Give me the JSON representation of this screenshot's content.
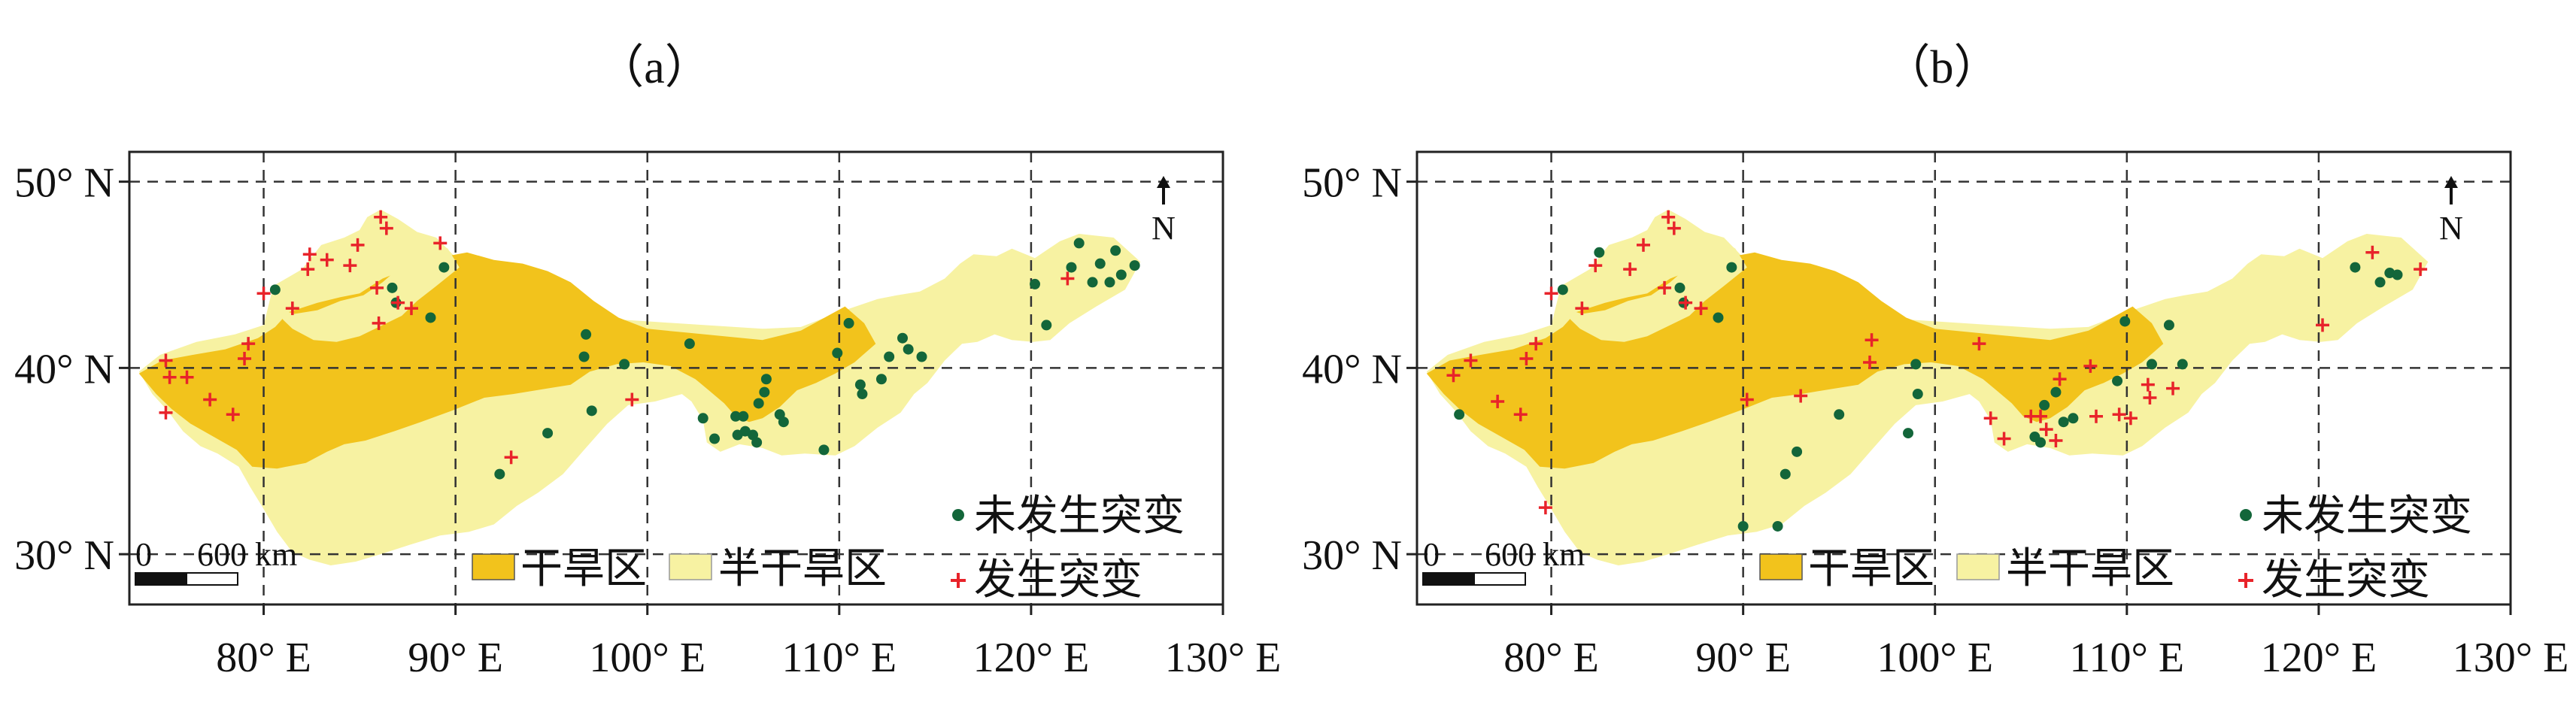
{
  "colors": {
    "arid": "#f2c31c",
    "semi_arid": "#f7f2a2",
    "no_mutation_marker": "#13663a",
    "mutation_marker": "#e8232a",
    "frame": "#222222",
    "grid": "#333333"
  },
  "panels": [
    {
      "label": "（a）",
      "legend": {
        "no_mutation": "未发生突变",
        "mutation": "发生突变",
        "arid": "干旱区",
        "semi_arid": "半干旱区"
      },
      "scale": {
        "zero": "0",
        "distance": "600 km"
      },
      "north": "N",
      "x_ticks": [
        "80° E",
        "90° E",
        "100° E",
        "110° E",
        "120° E",
        "130° E"
      ],
      "y_ticks": [
        "50° N",
        "40° N",
        "30° N"
      ],
      "green_points": [
        [
          80.6,
          44.2
        ],
        [
          86.7,
          44.3
        ],
        [
          86.9,
          43.5
        ],
        [
          88.7,
          42.7
        ],
        [
          89.4,
          45.4
        ],
        [
          96.8,
          41.8
        ],
        [
          96.7,
          40.6
        ],
        [
          98.8,
          40.2
        ],
        [
          102.2,
          41.3
        ],
        [
          97.1,
          37.7
        ],
        [
          102.9,
          37.3
        ],
        [
          103.5,
          36.2
        ],
        [
          104.6,
          37.4
        ],
        [
          105.0,
          37.4
        ],
        [
          105.1,
          36.6
        ],
        [
          104.7,
          36.4
        ],
        [
          105.5,
          36.4
        ],
        [
          105.8,
          38.1
        ],
        [
          106.1,
          38.7
        ],
        [
          106.2,
          39.4
        ],
        [
          105.7,
          36.0
        ],
        [
          106.9,
          37.5
        ],
        [
          107.1,
          37.1
        ],
        [
          109.2,
          35.6
        ],
        [
          109.9,
          40.8
        ],
        [
          110.5,
          42.4
        ],
        [
          111.1,
          39.1
        ],
        [
          111.2,
          38.6
        ],
        [
          112.2,
          39.4
        ],
        [
          112.6,
          40.6
        ],
        [
          113.3,
          41.6
        ],
        [
          113.6,
          41.0
        ],
        [
          114.3,
          40.6
        ],
        [
          120.2,
          44.5
        ],
        [
          120.8,
          42.3
        ],
        [
          122.5,
          46.7
        ],
        [
          123.2,
          44.6
        ],
        [
          123.6,
          45.6
        ],
        [
          124.1,
          44.6
        ],
        [
          124.4,
          46.3
        ],
        [
          124.7,
          45.0
        ],
        [
          125.4,
          45.5
        ],
        [
          122.1,
          45.4
        ],
        [
          92.3,
          34.3
        ],
        [
          94.8,
          36.5
        ]
      ],
      "red_points": [
        [
          74.9,
          40.4
        ],
        [
          75.1,
          39.5
        ],
        [
          74.9,
          37.6
        ],
        [
          76.0,
          39.5
        ],
        [
          77.2,
          38.3
        ],
        [
          78.4,
          37.5
        ],
        [
          79.0,
          40.5
        ],
        [
          79.2,
          41.3
        ],
        [
          80.0,
          44.0
        ],
        [
          81.5,
          43.2
        ],
        [
          82.3,
          45.3
        ],
        [
          82.4,
          46.1
        ],
        [
          83.3,
          45.8
        ],
        [
          84.5,
          45.5
        ],
        [
          84.9,
          46.6
        ],
        [
          85.9,
          44.3
        ],
        [
          86.1,
          48.1
        ],
        [
          86.4,
          47.5
        ],
        [
          86.0,
          42.4
        ],
        [
          87.0,
          43.5
        ],
        [
          87.7,
          43.2
        ],
        [
          89.2,
          46.7
        ],
        [
          92.9,
          35.2
        ],
        [
          99.2,
          38.3
        ],
        [
          121.9,
          44.8
        ]
      ]
    },
    {
      "label": "（b）",
      "legend": {
        "no_mutation": "未发生突变",
        "mutation": "发生突变",
        "arid": "干旱区",
        "semi_arid": "半干旱区"
      },
      "scale": {
        "zero": "0",
        "distance": "600 km"
      },
      "north": "N",
      "x_ticks": [
        "80° E",
        "90° E",
        "100° E",
        "110° E",
        "120° E",
        "130° E"
      ],
      "y_ticks": [
        "50° N",
        "40° N",
        "30° N"
      ],
      "green_points": [
        [
          75.2,
          37.5
        ],
        [
          80.6,
          44.2
        ],
        [
          82.5,
          46.2
        ],
        [
          86.7,
          44.3
        ],
        [
          86.9,
          43.5
        ],
        [
          88.7,
          42.7
        ],
        [
          89.4,
          45.4
        ],
        [
          92.2,
          34.3
        ],
        [
          92.8,
          35.5
        ],
        [
          90.0,
          31.5
        ],
        [
          91.8,
          31.5
        ],
        [
          95.0,
          37.5
        ],
        [
          98.6,
          36.5
        ],
        [
          99.1,
          38.6
        ],
        [
          99.0,
          40.2
        ],
        [
          105.2,
          36.3
        ],
        [
          105.7,
          38.0
        ],
        [
          106.3,
          38.7
        ],
        [
          106.7,
          37.1
        ],
        [
          107.2,
          37.3
        ],
        [
          105.5,
          36.0
        ],
        [
          109.5,
          39.3
        ],
        [
          109.9,
          42.5
        ],
        [
          112.2,
          42.3
        ],
        [
          112.9,
          40.2
        ],
        [
          111.3,
          40.2
        ],
        [
          121.9,
          45.4
        ],
        [
          123.2,
          44.6
        ],
        [
          123.7,
          45.1
        ],
        [
          124.1,
          45.0
        ]
      ],
      "red_points": [
        [
          74.9,
          39.6
        ],
        [
          75.8,
          40.4
        ],
        [
          77.2,
          38.2
        ],
        [
          78.4,
          37.5
        ],
        [
          78.7,
          40.5
        ],
        [
          79.2,
          41.3
        ],
        [
          80.0,
          44.0
        ],
        [
          79.7,
          32.5
        ],
        [
          81.6,
          43.2
        ],
        [
          82.3,
          45.5
        ],
        [
          84.1,
          45.3
        ],
        [
          84.8,
          46.6
        ],
        [
          85.9,
          44.3
        ],
        [
          86.1,
          48.1
        ],
        [
          86.4,
          47.5
        ],
        [
          87.0,
          43.5
        ],
        [
          87.8,
          43.2
        ],
        [
          90.2,
          38.3
        ],
        [
          93.0,
          38.5
        ],
        [
          96.6,
          40.3
        ],
        [
          96.7,
          41.5
        ],
        [
          102.3,
          41.3
        ],
        [
          102.9,
          37.3
        ],
        [
          103.6,
          36.2
        ],
        [
          105.0,
          37.4
        ],
        [
          105.5,
          37.4
        ],
        [
          105.8,
          36.7
        ],
        [
          106.3,
          36.1
        ],
        [
          106.5,
          39.4
        ],
        [
          108.1,
          40.1
        ],
        [
          108.4,
          37.4
        ],
        [
          109.6,
          37.5
        ],
        [
          110.2,
          37.3
        ],
        [
          111.1,
          39.1
        ],
        [
          111.2,
          38.4
        ],
        [
          112.4,
          38.9
        ],
        [
          120.2,
          42.3
        ],
        [
          122.8,
          46.2
        ],
        [
          125.3,
          45.3
        ]
      ]
    }
  ]
}
